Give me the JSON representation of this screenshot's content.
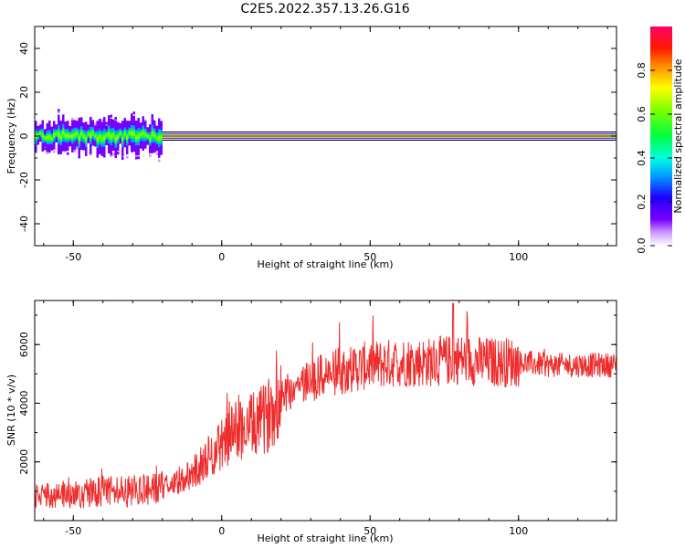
{
  "figure_title": "C2E5.2022.357.13.26.G16",
  "chart_data": [
    {
      "type": "heatmap",
      "name": "spectrogram",
      "xlabel": "Height of straight line (km)",
      "ylabel": "Frequency (Hz)",
      "xlim": [
        -63,
        133
      ],
      "ylim": [
        -50,
        50
      ],
      "xticks": [
        -50,
        0,
        50,
        100
      ],
      "yticks": [
        -40,
        -20,
        0,
        20,
        40
      ],
      "colorbar": {
        "label": "Normalized spectral amplitude",
        "range": [
          0.0,
          1.0
        ],
        "ticks": [
          0.0,
          0.2,
          0.4,
          0.6,
          0.8
        ],
        "colormap": "rainbow: white-violet-blue-cyan-green-yellow-orange-red-magenta"
      },
      "ridge": {
        "frequency_hz": 0,
        "x_start": -63,
        "x_end": 133,
        "peak_amplitude": 0.95,
        "noisy_until_x": -20,
        "spread_hz_low_height": 5
      }
    },
    {
      "type": "line",
      "name": "snr",
      "xlabel": "Height of straight line (km)",
      "ylabel": "SNR (10 * v/v)",
      "xlim": [
        -63,
        133
      ],
      "ylim": [
        0,
        7500
      ],
      "xticks": [
        -50,
        0,
        50,
        100
      ],
      "yticks": [
        2000,
        4000,
        6000
      ],
      "color": "#ee2c2c",
      "trend": {
        "x": [
          -63,
          -50,
          -40,
          -30,
          -20,
          -10,
          0,
          5,
          10,
          15,
          20,
          30,
          40,
          50,
          60,
          70,
          80,
          90,
          100,
          110,
          120,
          133
        ],
        "y": [
          800,
          900,
          1000,
          1000,
          1100,
          1600,
          2600,
          3100,
          3200,
          3500,
          4300,
          4800,
          5100,
          5300,
          5400,
          5400,
          5500,
          5400,
          5400,
          5300,
          5300,
          5300
        ]
      },
      "peak": {
        "x": 78,
        "y": 7400
      }
    }
  ]
}
